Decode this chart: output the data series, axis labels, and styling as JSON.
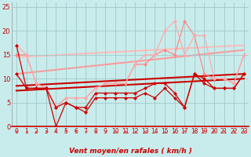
{
  "title": "",
  "xlabel": "Vent moyen/en rafales ( km/h )",
  "bg_color": "#c8ecec",
  "grid_color": "#a0c8c8",
  "xlim": [
    -0.5,
    23.5
  ],
  "ylim": [
    0,
    26
  ],
  "yticks": [
    0,
    5,
    10,
    15,
    20,
    25
  ],
  "xticks": [
    0,
    1,
    2,
    3,
    4,
    5,
    6,
    7,
    8,
    9,
    10,
    11,
    12,
    13,
    14,
    15,
    16,
    17,
    18,
    19,
    20,
    21,
    22,
    23
  ],
  "series": [
    {
      "label": "dark1",
      "x": [
        0,
        1,
        2,
        3,
        4,
        5,
        6,
        7,
        8,
        9,
        10,
        11,
        12,
        13,
        14,
        15,
        16,
        17,
        18,
        19,
        20,
        21,
        22,
        23
      ],
      "y": [
        11,
        8,
        8,
        8,
        0,
        5,
        4,
        4,
        7,
        7,
        7,
        7,
        7,
        8,
        9,
        9,
        7,
        4,
        11,
        10,
        8,
        8,
        8,
        11
      ],
      "color": "#cc0000",
      "lw": 0.9,
      "marker": "D",
      "ms": 2.5,
      "zorder": 4
    },
    {
      "label": "dark2",
      "x": [
        0,
        1,
        2,
        3,
        4,
        5,
        6,
        7,
        8,
        9,
        10,
        11,
        12,
        13,
        14,
        15,
        16,
        17,
        18,
        19,
        20,
        21,
        22,
        23
      ],
      "y": [
        17,
        8,
        8,
        8,
        4,
        5,
        4,
        3,
        6,
        6,
        6,
        6,
        6,
        7,
        6,
        8,
        6,
        4,
        11,
        9,
        8,
        8,
        8,
        11
      ],
      "color": "#cc0000",
      "lw": 0.9,
      "marker": "D",
      "ms": 2.5,
      "zorder": 4
    },
    {
      "label": "light1",
      "x": [
        0,
        1,
        2,
        3,
        4,
        5,
        6,
        7,
        8,
        9,
        10,
        11,
        12,
        13,
        14,
        15,
        16,
        17,
        18,
        19,
        20,
        21,
        22,
        23
      ],
      "y": [
        15,
        15,
        9,
        8,
        4,
        6,
        6,
        6,
        8,
        9,
        9,
        9,
        13,
        13,
        15,
        16,
        15,
        22,
        19,
        11,
        10,
        10,
        9,
        15
      ],
      "color": "#ff8888",
      "lw": 0.9,
      "marker": "D",
      "ms": 2.5,
      "zorder": 3
    },
    {
      "label": "light2",
      "x": [
        0,
        1,
        2,
        3,
        4,
        5,
        6,
        7,
        8,
        9,
        10,
        11,
        12,
        13,
        14,
        15,
        16,
        17,
        18,
        19,
        20,
        21,
        22,
        23
      ],
      "y": [
        17,
        15,
        9,
        8,
        4,
        6,
        6,
        6,
        8,
        9,
        9,
        9,
        13,
        15,
        15,
        20,
        22,
        15,
        19,
        19,
        10,
        10,
        9,
        15
      ],
      "color": "#ffaaaa",
      "lw": 0.9,
      "marker": "D",
      "ms": 2.5,
      "zorder": 3
    },
    {
      "label": "trend_dark1",
      "x": [
        0,
        23
      ],
      "y": [
        7.5,
        10.0
      ],
      "color": "#cc0000",
      "lw": 1.5,
      "marker": null,
      "ms": 0,
      "zorder": 2
    },
    {
      "label": "trend_dark2",
      "x": [
        0,
        23
      ],
      "y": [
        8.5,
        11.0
      ],
      "color": "#cc0000",
      "lw": 1.5,
      "marker": null,
      "ms": 0,
      "zorder": 2
    },
    {
      "label": "trend_light1",
      "x": [
        0,
        23
      ],
      "y": [
        11.0,
        16.0
      ],
      "color": "#ff9999",
      "lw": 1.5,
      "marker": null,
      "ms": 0,
      "zorder": 1
    },
    {
      "label": "trend_light2",
      "x": [
        0,
        23
      ],
      "y": [
        14.5,
        17.0
      ],
      "color": "#ffbbbb",
      "lw": 1.5,
      "marker": null,
      "ms": 0,
      "zorder": 1
    }
  ],
  "wind_arrows": {
    "angles": [
      225,
      210,
      210,
      210,
      270,
      270,
      270,
      210,
      225,
      210,
      210,
      210,
      210,
      200,
      200,
      195,
      190,
      270,
      270,
      95,
      100,
      80,
      270,
      225
    ],
    "color": "#dd4444"
  }
}
